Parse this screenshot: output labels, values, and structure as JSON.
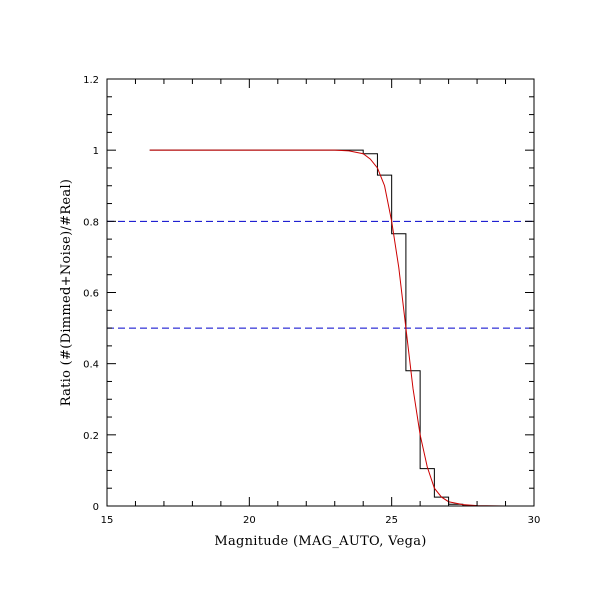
{
  "chart_data": {
    "type": "line",
    "title": "",
    "xlabel": "Magnitude (MAG_AUTO, Vega)",
    "ylabel": "Ratio (#(Dimmed+Noise)/#Real)",
    "xlim": [
      15,
      30
    ],
    "ylim": [
      0,
      1.2
    ],
    "x_ticks": [
      15,
      20,
      25,
      30
    ],
    "x_tick_labels": [
      "15",
      "20",
      "25",
      "30"
    ],
    "y_ticks": [
      0,
      0.2,
      0.4,
      0.6,
      0.8,
      1,
      1.2
    ],
    "y_tick_labels": [
      "0",
      "0.2",
      "0.4",
      "0.6",
      "0.8",
      "1",
      "1.2"
    ],
    "grid": false,
    "reference_lines": [
      {
        "y": 0.8,
        "style": "dashed",
        "color": "#0000cc"
      },
      {
        "y": 0.5,
        "style": "dashed",
        "color": "#0000cc"
      }
    ],
    "series": [
      {
        "kind": "step",
        "color": "#000000",
        "x": [
          16.5,
          23.5,
          24.0,
          24.5,
          25.0,
          25.5,
          26.0,
          26.5,
          27.0,
          27.5,
          28.0,
          28.5,
          29.0,
          29.5,
          30.0
        ],
        "values": [
          1.0,
          1.0,
          0.99,
          0.93,
          0.765,
          0.38,
          0.105,
          0.025,
          0.005,
          0.001,
          0.0,
          0.0,
          0.0,
          0.0,
          0.0
        ]
      },
      {
        "kind": "line",
        "color": "#cc0000",
        "x": [
          16.5,
          18.0,
          20.0,
          22.0,
          23.0,
          23.5,
          24.0,
          24.25,
          24.5,
          24.75,
          25.0,
          25.25,
          25.5,
          25.75,
          26.0,
          26.25,
          26.5,
          26.75,
          27.0,
          27.5,
          28.0,
          29.0,
          30.0
        ],
        "values": [
          1.0,
          1.0,
          1.0,
          1.0,
          1.0,
          0.998,
          0.99,
          0.975,
          0.95,
          0.9,
          0.8,
          0.67,
          0.5,
          0.33,
          0.2,
          0.11,
          0.05,
          0.025,
          0.012,
          0.004,
          0.001,
          0.0,
          0.0
        ]
      }
    ]
  }
}
